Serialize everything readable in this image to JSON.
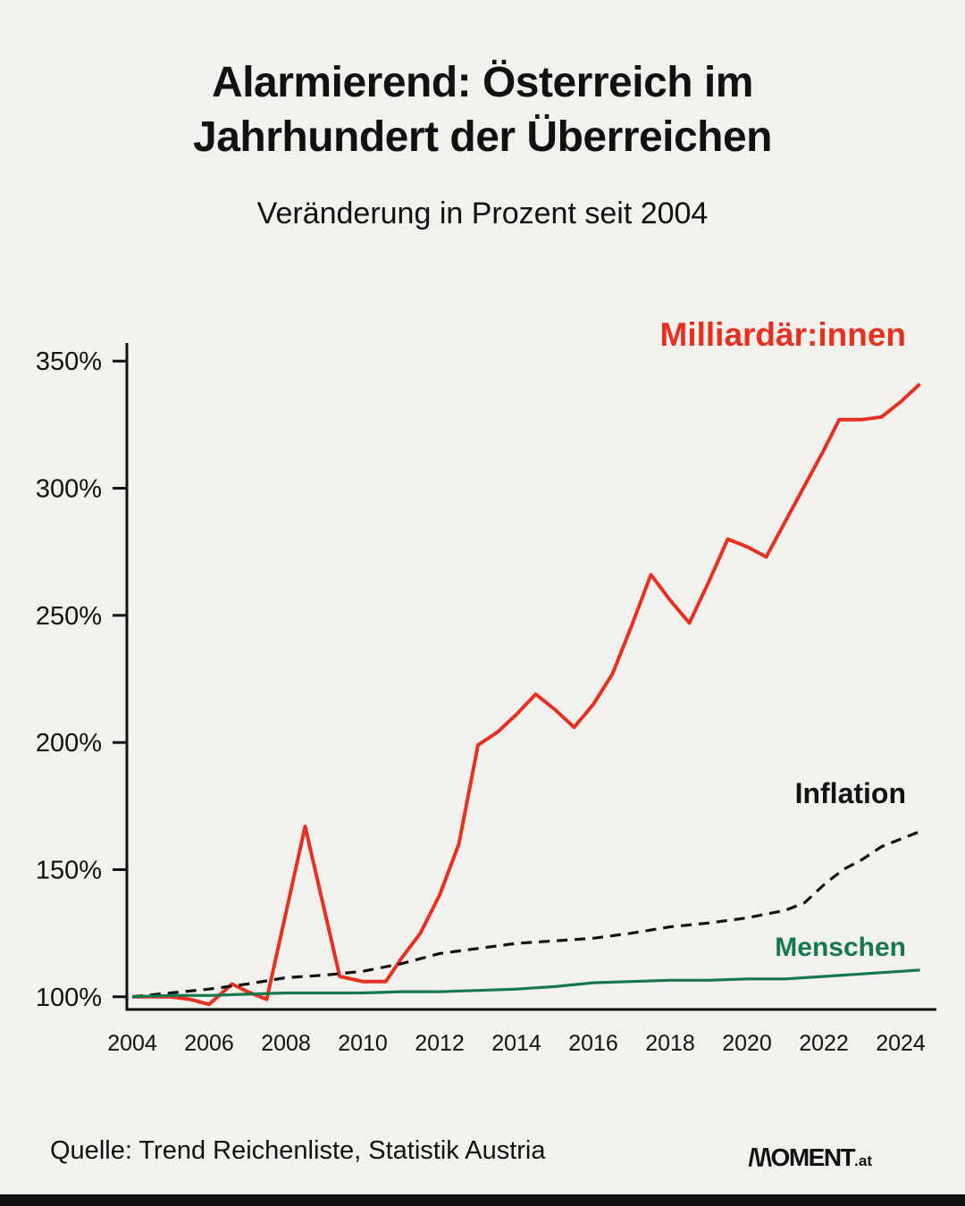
{
  "page": {
    "background": "#f3f1ed",
    "footer_source": "Quelle: Trend Reichenliste, Statistik Austria",
    "logo": {
      "wordmark": "/\\/\\OMENT",
      "tld": ".at"
    }
  },
  "header": {
    "title_line1": "Alarmierend: Österreich im",
    "title_line2": "Jahrhundert der Überreichen",
    "subtitle": "Veränderung in Prozent seit 2004"
  },
  "chart_data": {
    "type": "line",
    "title": "Alarmierend: Österreich im Jahrhundert der Überreichen",
    "subtitle": "Veränderung in Prozent seit 2004",
    "xlabel": "",
    "ylabel": "Veränderung in Prozent seit 2004",
    "grid": false,
    "legend_position": "inline-labels",
    "x_ticks": [
      2004,
      2006,
      2008,
      2010,
      2012,
      2014,
      2016,
      2018,
      2020,
      2022,
      2024
    ],
    "y_ticks": [
      100,
      150,
      200,
      250,
      300,
      350
    ],
    "y_tick_suffix": "%",
    "x_range": [
      2004,
      2025
    ],
    "y_range": [
      95,
      355
    ],
    "series": [
      {
        "name": "Milliardär:innen",
        "color": "#e8301f",
        "style": "solid",
        "points": [
          [
            2004,
            100
          ],
          [
            2005,
            100
          ],
          [
            2005.5,
            99
          ],
          [
            2006,
            97
          ],
          [
            2006.6,
            105
          ],
          [
            2007,
            102
          ],
          [
            2007.5,
            99
          ],
          [
            2008.5,
            167
          ],
          [
            2009.4,
            108
          ],
          [
            2010,
            106
          ],
          [
            2010.6,
            106
          ],
          [
            2011,
            115
          ],
          [
            2011.5,
            125
          ],
          [
            2012,
            140
          ],
          [
            2012.5,
            160
          ],
          [
            2013,
            199
          ],
          [
            2013.5,
            204
          ],
          [
            2014,
            211
          ],
          [
            2014.5,
            219
          ],
          [
            2015,
            213
          ],
          [
            2015.5,
            206
          ],
          [
            2016,
            215
          ],
          [
            2016.5,
            227
          ],
          [
            2017,
            246
          ],
          [
            2017.5,
            266
          ],
          [
            2018,
            256
          ],
          [
            2018.5,
            247
          ],
          [
            2019,
            263
          ],
          [
            2019.5,
            280
          ],
          [
            2020,
            277
          ],
          [
            2020.5,
            273
          ],
          [
            2021,
            287
          ],
          [
            2021.5,
            301
          ],
          [
            2022,
            315
          ],
          [
            2022.4,
            327
          ],
          [
            2023,
            327
          ],
          [
            2023.5,
            328
          ],
          [
            2024,
            334
          ],
          [
            2024.5,
            341
          ]
        ]
      },
      {
        "name": "Inflation",
        "color": "#111111",
        "style": "dashed",
        "points": [
          [
            2004,
            100
          ],
          [
            2005,
            101.5
          ],
          [
            2006,
            103
          ],
          [
            2007,
            105
          ],
          [
            2008,
            107.5
          ],
          [
            2009,
            108.5
          ],
          [
            2010,
            110
          ],
          [
            2011,
            113
          ],
          [
            2012,
            117
          ],
          [
            2013,
            119
          ],
          [
            2014,
            121
          ],
          [
            2015,
            122
          ],
          [
            2016,
            123
          ],
          [
            2017,
            125
          ],
          [
            2018,
            127.5
          ],
          [
            2019,
            129
          ],
          [
            2020,
            131
          ],
          [
            2021,
            134
          ],
          [
            2021.5,
            137
          ],
          [
            2022,
            144
          ],
          [
            2022.5,
            150
          ],
          [
            2023,
            154
          ],
          [
            2023.5,
            159
          ],
          [
            2024,
            162
          ],
          [
            2024.5,
            165
          ]
        ]
      },
      {
        "name": "Menschen",
        "color": "#16794c",
        "style": "solid",
        "points": [
          [
            2004,
            100
          ],
          [
            2005,
            100.5
          ],
          [
            2006,
            100.5
          ],
          [
            2007,
            101
          ],
          [
            2008,
            101.5
          ],
          [
            2009,
            101.5
          ],
          [
            2010,
            101.5
          ],
          [
            2011,
            102
          ],
          [
            2012,
            102
          ],
          [
            2013,
            102.5
          ],
          [
            2014,
            103
          ],
          [
            2015,
            104
          ],
          [
            2016,
            105.5
          ],
          [
            2017,
            106
          ],
          [
            2018,
            106.5
          ],
          [
            2019,
            106.5
          ],
          [
            2020,
            107
          ],
          [
            2021,
            107
          ],
          [
            2022,
            108
          ],
          [
            2023,
            109
          ],
          [
            2024,
            110
          ],
          [
            2024.5,
            110.5
          ]
        ]
      }
    ]
  }
}
